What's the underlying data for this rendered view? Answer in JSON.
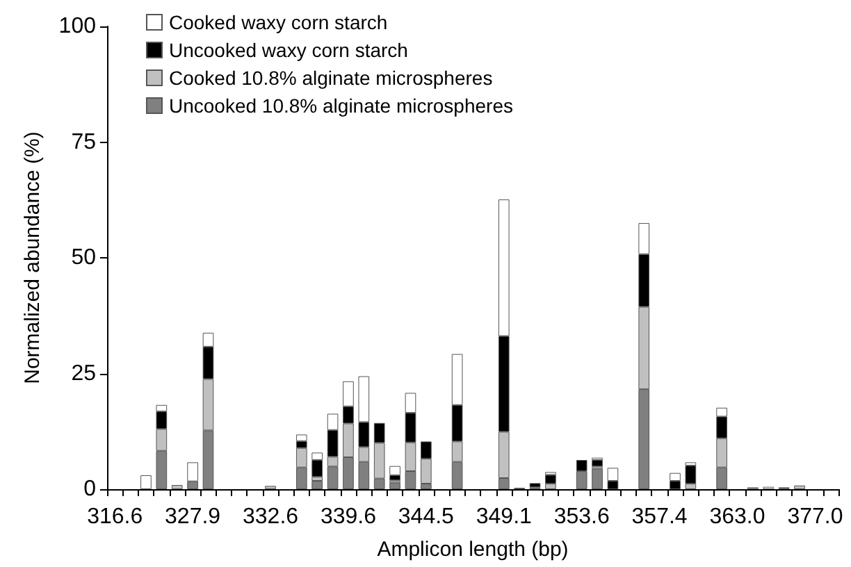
{
  "chart_data": {
    "type": "bar",
    "stacked": true,
    "xlabel": "Amplicon length (bp)",
    "ylabel": "Normalized abundance (%)",
    "categories": [
      "316.6",
      null,
      null,
      null,
      null,
      "327.9",
      null,
      null,
      null,
      null,
      "332.6",
      null,
      null,
      null,
      null,
      "339.6",
      null,
      null,
      null,
      null,
      "344.5",
      null,
      null,
      null,
      null,
      "349.1",
      null,
      null,
      null,
      null,
      "353.6",
      null,
      null,
      null,
      null,
      "357.4",
      null,
      null,
      null,
      null,
      "363.0",
      null,
      null,
      null,
      null,
      "377.0",
      null
    ],
    "ylim": [
      0,
      100
    ],
    "yticks": [
      0,
      25,
      50,
      75,
      100
    ],
    "grid": false,
    "legend": "top left",
    "series": [
      {
        "name": "Uncooked 10.8% alginate microspheres",
        "color": "#808080",
        "values": [
          null,
          null,
          null,
          8.3,
          null,
          1.7,
          12.7,
          null,
          null,
          null,
          null,
          null,
          4.7,
          1.8,
          4.9,
          6.9,
          5.9,
          2.3,
          1.4,
          3.9,
          1.2,
          null,
          5.9,
          null,
          null,
          2.4,
          0.3,
          0.4,
          null,
          null,
          3.9,
          4.4,
          null,
          null,
          21.6,
          null,
          null,
          null,
          null,
          4.7,
          null,
          null,
          null,
          0.4,
          null,
          null,
          null
        ]
      },
      {
        "name": "Cooked 10.8% alginate microspheres",
        "color": "#c0c0c0",
        "values": [
          null,
          null,
          null,
          4.7,
          0.9,
          null,
          11.1,
          null,
          null,
          null,
          0.7,
          null,
          4.2,
          0.9,
          2.1,
          7.3,
          3.2,
          7.7,
          0.5,
          6.2,
          5.4,
          null,
          4.4,
          null,
          null,
          10.0,
          null,
          null,
          1.2,
          null,
          null,
          0.5,
          null,
          null,
          17.8,
          null,
          null,
          1.2,
          null,
          6.3,
          null,
          0.4,
          null,
          null,
          0.8,
          null,
          null
        ]
      },
      {
        "name": "Uncooked waxy corn starch",
        "color": "#000000",
        "values": [
          null,
          null,
          null,
          3.8,
          null,
          null,
          7.0,
          null,
          null,
          null,
          null,
          null,
          1.5,
          3.6,
          5.8,
          3.7,
          5.4,
          4.3,
          1.1,
          6.4,
          3.7,
          null,
          7.9,
          null,
          null,
          20.7,
          null,
          0.9,
          1.9,
          null,
          2.4,
          1.4,
          1.8,
          null,
          11.4,
          null,
          1.8,
          3.9,
          null,
          4.7,
          null,
          null,
          null,
          null,
          null,
          null,
          null
        ]
      },
      {
        "name": "Cooked waxy corn starch",
        "color": "#ffffff",
        "values": [
          null,
          null,
          3.0,
          1.4,
          null,
          4.1,
          3.0,
          null,
          null,
          null,
          null,
          null,
          1.4,
          1.6,
          3.5,
          5.4,
          9.9,
          null,
          2.0,
          4.3,
          null,
          null,
          11.0,
          null,
          null,
          29.5,
          null,
          null,
          0.6,
          null,
          null,
          0.5,
          2.8,
          null,
          6.7,
          null,
          1.7,
          0.7,
          null,
          1.9,
          null,
          null,
          0.5,
          null,
          null,
          null,
          null
        ]
      }
    ]
  }
}
